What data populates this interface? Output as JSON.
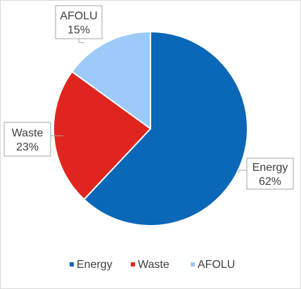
{
  "chart_data": {
    "type": "pie",
    "title": "",
    "slices": [
      {
        "label": "Energy",
        "value": 62,
        "display": "62%",
        "color": "#0b67b7"
      },
      {
        "label": "Waste",
        "value": 23,
        "display": "23%",
        "color": "#e0251f"
      },
      {
        "label": "AFOLU",
        "value": 15,
        "display": "15%",
        "color": "#9dcaf8"
      }
    ],
    "start_angle_deg": 0,
    "direction": "clockwise",
    "data_labels": "callouts with category and percentage",
    "legend": {
      "position": "bottom",
      "entries": [
        "Energy",
        "Waste",
        "AFOLU"
      ]
    }
  }
}
